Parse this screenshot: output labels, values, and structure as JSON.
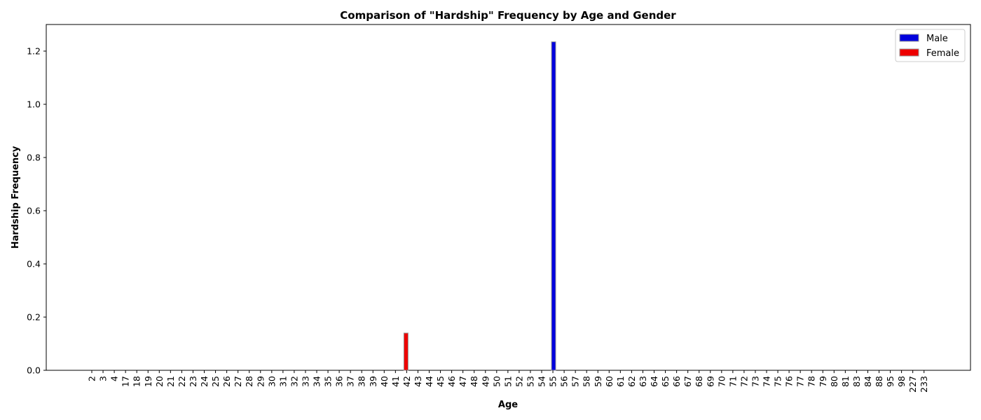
{
  "chart_data": {
    "type": "bar",
    "title": "Comparison of \"Hardship\" Frequency by Age and Gender",
    "xlabel": "Age",
    "ylabel": "Hardship Frequency",
    "categories": [
      "2",
      "3",
      "4",
      "17",
      "18",
      "19",
      "20",
      "21",
      "22",
      "23",
      "24",
      "25",
      "26",
      "27",
      "28",
      "29",
      "30",
      "31",
      "32",
      "33",
      "34",
      "35",
      "36",
      "37",
      "38",
      "39",
      "40",
      "41",
      "42",
      "43",
      "44",
      "45",
      "46",
      "47",
      "48",
      "49",
      "50",
      "51",
      "52",
      "53",
      "54",
      "55",
      "56",
      "57",
      "58",
      "59",
      "60",
      "61",
      "62",
      "63",
      "64",
      "65",
      "66",
      "67",
      "68",
      "69",
      "70",
      "71",
      "72",
      "73",
      "74",
      "75",
      "76",
      "77",
      "78",
      "79",
      "80",
      "81",
      "83",
      "84",
      "88",
      "95",
      "98",
      "227",
      "233"
    ],
    "series": [
      {
        "name": "Male",
        "color": "#0000dd",
        "values": [
          0,
          0,
          0,
          0,
          0,
          0,
          0,
          0,
          0,
          0,
          0,
          0,
          0,
          0,
          0,
          0,
          0,
          0,
          0,
          0,
          0,
          0,
          0,
          0,
          0,
          0,
          0,
          0,
          0,
          0,
          0,
          0,
          0,
          0,
          0,
          0,
          0,
          0,
          0,
          0,
          0,
          1.235,
          0,
          0,
          0,
          0,
          0,
          0,
          0,
          0,
          0,
          0,
          0,
          0,
          0,
          0,
          0,
          0,
          0,
          0,
          0,
          0,
          0,
          0,
          0,
          0,
          0,
          0,
          0,
          0,
          0,
          0,
          0,
          0,
          0
        ]
      },
      {
        "name": "Female",
        "color": "#ee0000",
        "values": [
          0,
          0,
          0,
          0,
          0,
          0,
          0,
          0,
          0,
          0,
          0,
          0,
          0,
          0,
          0,
          0,
          0,
          0,
          0,
          0,
          0,
          0,
          0,
          0,
          0,
          0,
          0,
          0,
          0.14,
          0,
          0,
          0,
          0,
          0,
          0,
          0,
          0,
          0,
          0,
          0,
          0,
          0,
          0,
          0,
          0,
          0,
          0,
          0,
          0,
          0,
          0,
          0,
          0,
          0,
          0,
          0,
          0,
          0,
          0,
          0,
          0,
          0,
          0,
          0,
          0,
          0,
          0,
          0,
          0,
          0,
          0,
          0,
          0,
          0,
          0
        ]
      }
    ],
    "ylim": [
      0,
      1.3
    ],
    "yticks": [
      0.0,
      0.2,
      0.4,
      0.6,
      0.8,
      1.0,
      1.2
    ],
    "grid": false,
    "legend_position": "top-right"
  }
}
